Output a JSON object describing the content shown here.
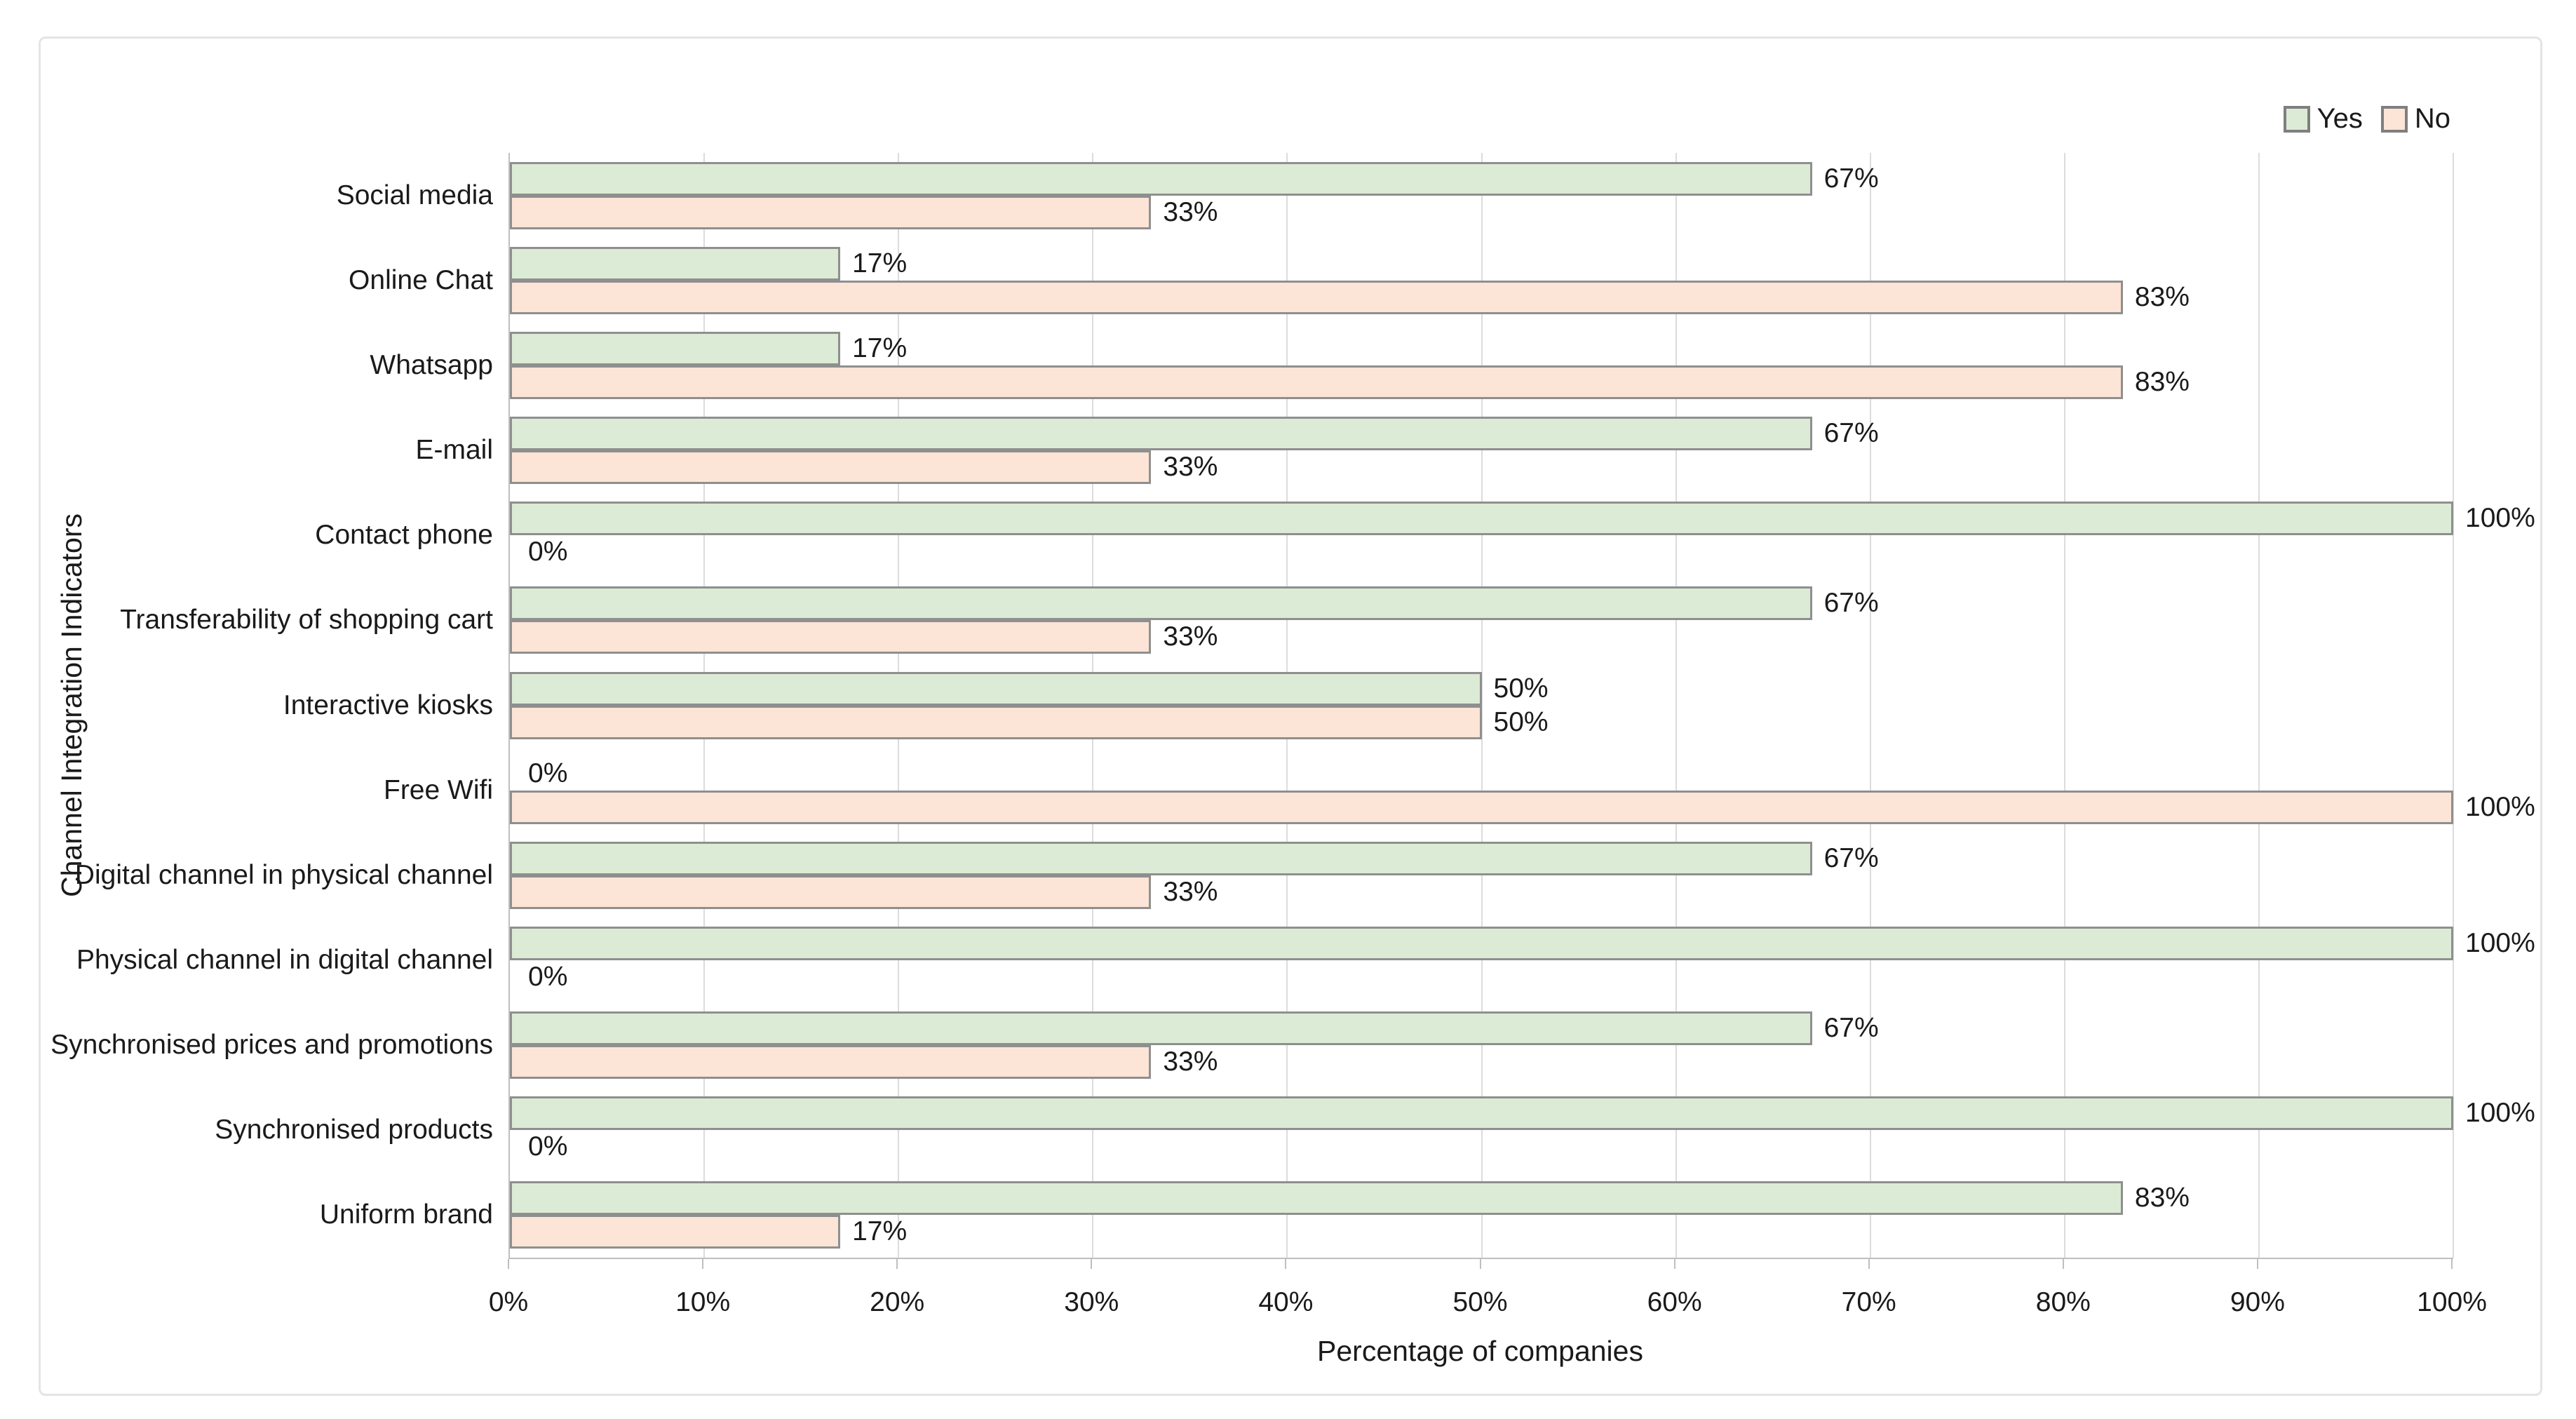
{
  "chart_data": {
    "type": "bar",
    "orientation": "horizontal",
    "title": "",
    "xlabel": "Percentage of companies",
    "ylabel": "Channel Integration Indicators",
    "categories": [
      "Social media",
      "Online Chat",
      "Whatsapp",
      "E-mail",
      "Contact phone",
      "Transferability of shopping cart",
      "Interactive kiosks",
      "Free Wifi",
      "Digital channel in physical channel",
      "Physical channel in digital channel",
      "Synchronised prices and promotions",
      "Synchronised products",
      "Uniform brand"
    ],
    "series": [
      {
        "name": "Yes",
        "color": "#dcebd5",
        "border_color": "#8f8f8f",
        "values": [
          67,
          17,
          17,
          67,
          100,
          67,
          50,
          0,
          67,
          100,
          67,
          100,
          83
        ],
        "labels": [
          "67%",
          "17%",
          "17%",
          "67%",
          "100%",
          "67%",
          "50%",
          "0%",
          "67%",
          "100%",
          "67%",
          "100%",
          "83%"
        ]
      },
      {
        "name": "No",
        "color": "#fce5d6",
        "border_color": "#8f8f8f",
        "values": [
          33,
          83,
          83,
          33,
          0,
          33,
          50,
          100,
          33,
          0,
          33,
          0,
          17
        ],
        "labels": [
          "33%",
          "83%",
          "83%",
          "33%",
          "0%",
          "33%",
          "50%",
          "100%",
          "33%",
          "0%",
          "33%",
          "0%",
          "17%"
        ]
      }
    ],
    "xlim": [
      0,
      100
    ],
    "xticks": [
      "0%",
      "10%",
      "20%",
      "30%",
      "40%",
      "50%",
      "60%",
      "70%",
      "80%",
      "90%",
      "100%"
    ],
    "grid": "vertical",
    "legend_position": "top-right",
    "colors": {
      "grid": "#dcdcdc",
      "axis": "#bfbfbf",
      "text": "#1a1a1a",
      "figure_border": "#e4e4e4"
    }
  }
}
